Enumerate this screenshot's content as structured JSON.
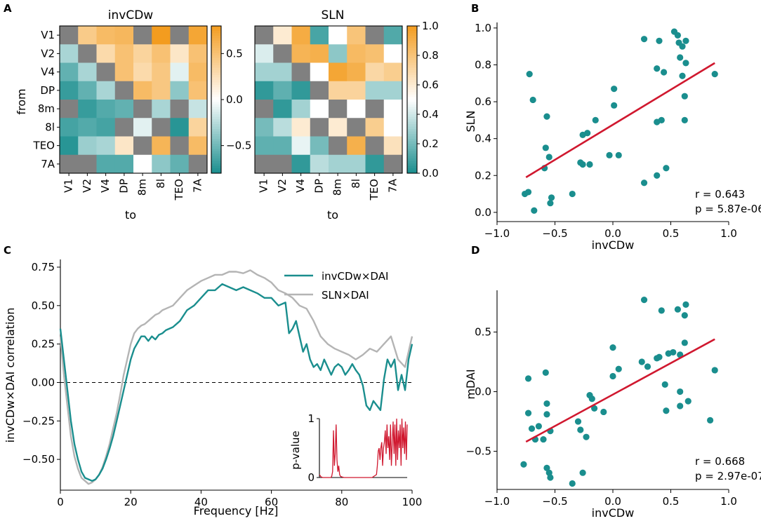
{
  "colors": {
    "teal": "#1a8e8e",
    "orange": "#f39c1f",
    "gray": "#b4b4b4",
    "red": "#d0182f",
    "diag": "#808080"
  },
  "panel_labels": [
    "A",
    "B",
    "C",
    "D"
  ],
  "chart_data": [
    {
      "id": "A_left",
      "type": "heatmap",
      "title": "invCDw",
      "ylabel": "from",
      "xlabel": "to",
      "areas": [
        "V1",
        "V2",
        "V4",
        "DP",
        "8m",
        "8l",
        "TEO",
        "7A"
      ],
      "xticks": [
        "V1",
        "V2",
        "V4",
        "DP",
        "8m",
        "8l",
        "TEO",
        "7A"
      ],
      "cbar_ticks": [
        "0.5",
        "0.0",
        "−0.5"
      ],
      "cbar_tick_values": [
        0.5,
        0.0,
        -0.5
      ],
      "vlim": [
        -0.8,
        0.8
      ],
      "values": [
        [
          null,
          0.42,
          0.55,
          0.58,
          null,
          0.8,
          null,
          0.72
        ],
        [
          -0.3,
          null,
          0.3,
          0.5,
          0.35,
          0.5,
          0.2,
          0.5
        ],
        [
          -0.55,
          -0.3,
          null,
          0.5,
          0.3,
          0.45,
          -0.1,
          0.55
        ],
        [
          -0.7,
          -0.55,
          -0.3,
          null,
          0.55,
          0.45,
          -0.4,
          0.5
        ],
        [
          null,
          -0.7,
          -0.6,
          -0.55,
          null,
          -0.3,
          null,
          -0.2
        ],
        [
          -0.65,
          -0.6,
          -0.65,
          null,
          -0.1,
          null,
          -0.75,
          0.35
        ],
        [
          -0.75,
          -0.35,
          -0.3,
          0.2,
          null,
          0.6,
          null,
          0.55
        ],
        [
          null,
          null,
          -0.6,
          -0.6,
          0.0,
          -0.4,
          -0.55,
          null
        ]
      ]
    },
    {
      "id": "A_right",
      "type": "heatmap",
      "title": "SLN",
      "xlabel": "to",
      "areas": [
        "V1",
        "V2",
        "V4",
        "DP",
        "8m",
        "8l",
        "TEO",
        "7A"
      ],
      "xticks": [
        "V1",
        "V2",
        "V4",
        "DP",
        "8m",
        "8l",
        "TEO",
        "7A"
      ],
      "cbar_ticks": [
        "1.0",
        "0.8",
        "0.6",
        "0.4",
        "0.2",
        "0.0"
      ],
      "cbar_tick_values": [
        1.0,
        0.8,
        0.6,
        0.4,
        0.2,
        0.0
      ],
      "vlim": [
        0,
        1
      ],
      "values": [
        [
          null,
          0.6,
          0.92,
          0.1,
          0.5,
          0.8,
          null,
          0.12
        ],
        [
          0.42,
          null,
          0.88,
          0.9,
          0.25,
          0.85,
          0.82,
          0.5
        ],
        [
          0.3,
          0.3,
          null,
          0.5,
          0.95,
          0.9,
          0.7,
          0.75
        ],
        [
          0.05,
          0.15,
          0.05,
          null,
          0.72,
          0.72,
          0.3,
          0.3
        ],
        [
          null,
          0.05,
          0.3,
          0.5,
          null,
          0.5,
          null,
          0.5
        ],
        [
          0.2,
          0.35,
          0.6,
          null,
          0.6,
          null,
          0.75,
          0.5
        ],
        [
          0.15,
          0.15,
          0.45,
          0.2,
          null,
          0.9,
          null,
          0.65
        ],
        [
          null,
          null,
          0.05,
          0.35,
          0.3,
          0.3,
          0.05,
          null
        ]
      ]
    },
    {
      "id": "B",
      "type": "scatter",
      "xlabel": "invCDw",
      "ylabel": "SLN",
      "xlim": [
        -1.0,
        1.0
      ],
      "ylim": [
        -0.05,
        1.03
      ],
      "xticks": [
        -1.0,
        -0.5,
        0.0,
        0.5,
        1.0
      ],
      "xtick_labels": [
        "−1.0",
        "−0.5",
        "0.0",
        "0.5",
        "1.0"
      ],
      "yticks": [
        0.0,
        0.2,
        0.4,
        0.6,
        0.8,
        1.0
      ],
      "ytick_labels": [
        "0.0",
        "0.2",
        "0.4",
        "0.6",
        "0.8",
        "1.0"
      ],
      "stat_r": "r = 0.643",
      "stat_p": "p = 5.87e-06",
      "fit": {
        "x": [
          -0.75,
          0.88
        ],
        "y": [
          0.19,
          0.81
        ]
      },
      "points": [
        [
          -0.76,
          0.1
        ],
        [
          -0.73,
          0.11
        ],
        [
          -0.72,
          0.75
        ],
        [
          -0.69,
          0.61
        ],
        [
          -0.68,
          0.01
        ],
        [
          -0.59,
          0.24
        ],
        [
          -0.58,
          0.35
        ],
        [
          -0.57,
          0.52
        ],
        [
          -0.55,
          0.3
        ],
        [
          -0.54,
          0.05
        ],
        [
          -0.53,
          0.08
        ],
        [
          -0.35,
          0.1
        ],
        [
          -0.28,
          0.27
        ],
        [
          -0.26,
          0.26
        ],
        [
          -0.26,
          0.42
        ],
        [
          -0.22,
          0.43
        ],
        [
          -0.2,
          0.26
        ],
        [
          -0.15,
          0.5
        ],
        [
          -0.03,
          0.31
        ],
        [
          0.01,
          0.58
        ],
        [
          0.01,
          0.67
        ],
        [
          0.05,
          0.31
        ],
        [
          0.27,
          0.94
        ],
        [
          0.27,
          0.16
        ],
        [
          0.38,
          0.2
        ],
        [
          0.38,
          0.49
        ],
        [
          0.38,
          0.78
        ],
        [
          0.4,
          0.93
        ],
        [
          0.42,
          0.5
        ],
        [
          0.44,
          0.76
        ],
        [
          0.46,
          0.24
        ],
        [
          0.53,
          0.98
        ],
        [
          0.56,
          0.96
        ],
        [
          0.57,
          0.92
        ],
        [
          0.58,
          0.84
        ],
        [
          0.6,
          0.9
        ],
        [
          0.6,
          0.74
        ],
        [
          0.62,
          0.63
        ],
        [
          0.62,
          0.5
        ],
        [
          0.63,
          0.93
        ],
        [
          0.63,
          0.81
        ],
        [
          0.88,
          0.75
        ]
      ]
    },
    {
      "id": "C",
      "type": "line",
      "xlabel": "Frequency [Hz]",
      "ylabel": "invCDw×DAI correlation",
      "xlim": [
        0,
        100
      ],
      "ylim": [
        -0.7,
        0.8
      ],
      "xticks": [
        0,
        20,
        40,
        60,
        80,
        100
      ],
      "yticks": [
        -0.5,
        -0.25,
        0.0,
        0.25,
        0.5,
        0.75
      ],
      "ytick_labels": [
        "−0.50",
        "−0.25",
        "0.00",
        "0.25",
        "0.50",
        "0.75"
      ],
      "legend": [
        "invCDw×DAI",
        "SLN×DAI"
      ],
      "legend_loc": "top-right",
      "series": [
        {
          "name": "invCDw×DAI",
          "x": [
            0,
            1,
            2,
            3,
            4,
            5,
            6,
            7,
            8,
            9,
            10,
            11,
            12,
            13,
            14,
            15,
            16,
            17,
            18,
            19,
            20,
            21,
            22,
            23,
            24,
            25,
            26,
            27,
            28,
            29,
            30,
            32,
            34,
            36,
            38,
            40,
            42,
            44,
            46,
            48,
            50,
            52,
            54,
            56,
            58,
            60,
            62,
            64,
            65,
            66,
            67,
            68,
            69,
            70,
            71,
            72,
            73,
            74,
            75,
            76,
            77,
            78,
            79,
            80,
            81,
            82,
            83,
            84,
            85,
            86,
            87,
            88,
            89,
            90,
            91,
            92,
            93,
            94,
            95,
            96,
            97,
            98,
            99,
            100
          ],
          "y": [
            0.35,
            0.15,
            -0.05,
            -0.25,
            -0.4,
            -0.5,
            -0.58,
            -0.62,
            -0.63,
            -0.64,
            -0.63,
            -0.6,
            -0.56,
            -0.5,
            -0.43,
            -0.35,
            -0.25,
            -0.15,
            -0.05,
            0.05,
            0.15,
            0.22,
            0.26,
            0.3,
            0.3,
            0.27,
            0.3,
            0.28,
            0.31,
            0.32,
            0.34,
            0.36,
            0.4,
            0.47,
            0.5,
            0.55,
            0.6,
            0.6,
            0.64,
            0.62,
            0.6,
            0.62,
            0.6,
            0.58,
            0.55,
            0.55,
            0.5,
            0.52,
            0.32,
            0.35,
            0.4,
            0.3,
            0.2,
            0.25,
            0.15,
            0.1,
            0.12,
            0.08,
            0.15,
            0.1,
            0.05,
            0.1,
            0.12,
            0.1,
            0.05,
            0.08,
            0.12,
            0.08,
            0.05,
            -0.02,
            -0.15,
            -0.18,
            -0.12,
            -0.15,
            -0.18,
            0.02,
            0.15,
            0.1,
            0.15,
            -0.05,
            0.05,
            -0.05,
            0.15,
            0.25
          ]
        },
        {
          "name": "SLN×DAI",
          "x": [
            0,
            1,
            2,
            3,
            4,
            5,
            6,
            7,
            8,
            9,
            10,
            11,
            12,
            13,
            14,
            15,
            16,
            17,
            18,
            19,
            20,
            21,
            22,
            23,
            24,
            25,
            26,
            27,
            28,
            29,
            30,
            32,
            34,
            36,
            38,
            40,
            42,
            44,
            46,
            48,
            50,
            52,
            54,
            56,
            58,
            60,
            62,
            64,
            66,
            68,
            70,
            72,
            74,
            76,
            78,
            80,
            82,
            84,
            86,
            88,
            90,
            92,
            94,
            96,
            98,
            100
          ],
          "y": [
            0.3,
            0.05,
            -0.15,
            -0.35,
            -0.48,
            -0.56,
            -0.62,
            -0.64,
            -0.66,
            -0.65,
            -0.63,
            -0.6,
            -0.55,
            -0.48,
            -0.4,
            -0.3,
            -0.2,
            -0.08,
            0.05,
            0.15,
            0.25,
            0.32,
            0.35,
            0.37,
            0.38,
            0.4,
            0.42,
            0.44,
            0.45,
            0.47,
            0.48,
            0.5,
            0.55,
            0.6,
            0.63,
            0.66,
            0.68,
            0.7,
            0.7,
            0.72,
            0.72,
            0.71,
            0.73,
            0.7,
            0.68,
            0.65,
            0.6,
            0.58,
            0.55,
            0.5,
            0.48,
            0.4,
            0.3,
            0.25,
            0.22,
            0.2,
            0.18,
            0.15,
            0.18,
            0.22,
            0.2,
            0.25,
            0.3,
            0.15,
            0.1,
            0.3
          ]
        }
      ],
      "inset": {
        "ylabel": "p-value",
        "yticks": [
          0,
          1
        ],
        "series_name": "p-value",
        "x": [
          0,
          2,
          4,
          6,
          8,
          10,
          12,
          13,
          14,
          15,
          16,
          17,
          18,
          19,
          20,
          21,
          22,
          23,
          24,
          26,
          28,
          30,
          35,
          40,
          45,
          50,
          55,
          60,
          65,
          66,
          67,
          68,
          69,
          70,
          71,
          72,
          73,
          74,
          75,
          76,
          77,
          78,
          79,
          80,
          81,
          82,
          83,
          84,
          85,
          86,
          87,
          88,
          89,
          90,
          91,
          92,
          93,
          94,
          95,
          96,
          97,
          98,
          99,
          100
        ],
        "y": [
          0.05,
          0.01,
          0.0,
          0.0,
          0.0,
          0.0,
          0.0,
          0.0,
          0.02,
          0.1,
          0.8,
          0.2,
          0.4,
          0.9,
          0.3,
          0.1,
          0.2,
          0.05,
          0.02,
          0.01,
          0.0,
          0.0,
          0.0,
          0.0,
          0.0,
          0.0,
          0.0,
          0.0,
          0.05,
          0.2,
          0.45,
          0.5,
          0.3,
          0.5,
          0.6,
          0.2,
          0.5,
          0.6,
          0.8,
          0.4,
          0.9,
          0.5,
          0.7,
          0.3,
          0.9,
          0.2,
          0.6,
          0.95,
          0.4,
          0.9,
          0.2,
          1.0,
          0.3,
          0.8,
          0.5,
          0.9,
          0.2,
          1.0,
          0.5,
          0.85,
          0.4,
          0.95,
          0.3,
          0.9
        ]
      }
    },
    {
      "id": "D",
      "type": "scatter",
      "xlabel": "invCDw",
      "ylabel": "mDAI",
      "xlim": [
        -1.0,
        1.0
      ],
      "ylim": [
        -0.82,
        0.85
      ],
      "xticks": [
        -1.0,
        -0.5,
        0.0,
        0.5,
        1.0
      ],
      "xtick_labels": [
        "−1.0",
        "−0.5",
        "0.0",
        "0.5",
        "1.0"
      ],
      "yticks": [
        -0.5,
        0.0,
        0.5
      ],
      "ytick_labels": [
        "−0.5",
        "0.0",
        "0.5"
      ],
      "stat_r": "r = 0.668",
      "stat_p": "p = 2.97e-07",
      "fit": {
        "x": [
          -0.75,
          0.88
        ],
        "y": [
          -0.42,
          0.44
        ]
      },
      "points": [
        [
          -0.77,
          -0.61
        ],
        [
          -0.73,
          0.11
        ],
        [
          -0.73,
          -0.18
        ],
        [
          -0.7,
          -0.31
        ],
        [
          -0.67,
          -0.4
        ],
        [
          -0.64,
          -0.29
        ],
        [
          -0.6,
          -0.4
        ],
        [
          -0.58,
          0.16
        ],
        [
          -0.57,
          -0.1
        ],
        [
          -0.57,
          -0.19
        ],
        [
          -0.57,
          -0.64
        ],
        [
          -0.55,
          -0.68
        ],
        [
          -0.54,
          -0.72
        ],
        [
          -0.54,
          -0.33
        ],
        [
          -0.35,
          -0.77
        ],
        [
          -0.3,
          -0.25
        ],
        [
          -0.28,
          -0.32
        ],
        [
          -0.26,
          -0.68
        ],
        [
          -0.23,
          -0.38
        ],
        [
          -0.2,
          -0.03
        ],
        [
          -0.18,
          -0.06
        ],
        [
          -0.16,
          -0.14
        ],
        [
          -0.08,
          -0.17
        ],
        [
          0.0,
          0.37
        ],
        [
          0.0,
          0.13
        ],
        [
          0.05,
          0.19
        ],
        [
          0.25,
          0.25
        ],
        [
          0.27,
          0.77
        ],
        [
          0.3,
          0.21
        ],
        [
          0.38,
          0.28
        ],
        [
          0.4,
          0.29
        ],
        [
          0.42,
          0.68
        ],
        [
          0.45,
          0.06
        ],
        [
          0.46,
          -0.16
        ],
        [
          0.48,
          0.32
        ],
        [
          0.52,
          0.33
        ],
        [
          0.56,
          0.69
        ],
        [
          0.58,
          0.31
        ],
        [
          0.58,
          0.0
        ],
        [
          0.58,
          -0.12
        ],
        [
          0.62,
          0.41
        ],
        [
          0.62,
          0.64
        ],
        [
          0.63,
          0.73
        ],
        [
          0.65,
          -0.08
        ],
        [
          0.84,
          -0.24
        ],
        [
          0.88,
          0.18
        ]
      ]
    }
  ]
}
